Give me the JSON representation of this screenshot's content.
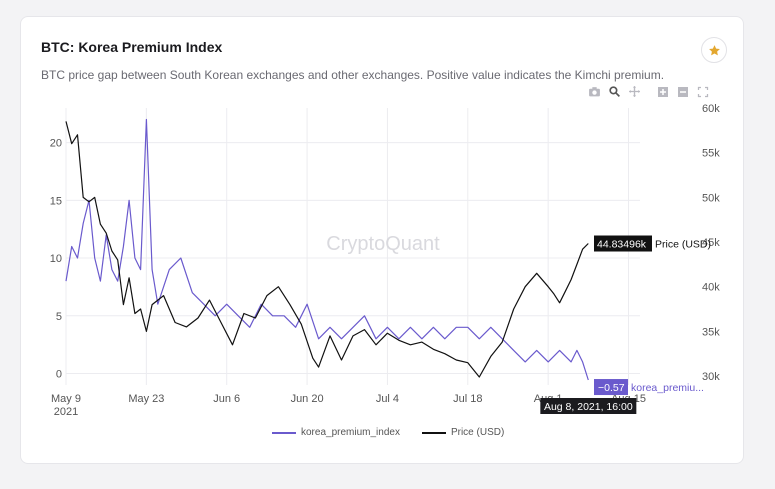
{
  "card": {
    "title": "BTC: Korea Premium Index",
    "subtitle": "BTC price gap between South Korean exchanges and other exchanges. Positive value indicates the Kimchi premium."
  },
  "toolbar": {
    "icons": [
      "camera-icon",
      "zoom-icon",
      "pan-icon",
      "zoom-in-icon",
      "zoom-out-icon",
      "autoscale-icon"
    ]
  },
  "colors": {
    "premium": "#6a5acd",
    "price": "#111111",
    "grid": "#ececf0",
    "star": "#e3a72f"
  },
  "chart_data": {
    "type": "line",
    "watermark": "CryptoQuant",
    "x_ticks": [
      "May 9",
      "May 23",
      "Jun 6",
      "Jun 20",
      "Jul 4",
      "Jul 18",
      "Aug 1",
      "Aug 15"
    ],
    "x_year_label": "2021",
    "x_range": [
      "2021-05-09",
      "2021-08-17"
    ],
    "y_left": {
      "ticks": [
        "0",
        "5",
        "10",
        "15",
        "20"
      ],
      "range": [
        -1,
        23
      ]
    },
    "y_right": {
      "ticks": [
        "30k",
        "35k",
        "40k",
        "45k",
        "50k",
        "55k",
        "60k"
      ],
      "range": [
        29000,
        60000
      ]
    },
    "series": [
      {
        "name": "korea_premium_index",
        "axis": "left",
        "x": [
          "2021-05-09",
          "2021-05-10",
          "2021-05-11",
          "2021-05-12",
          "2021-05-13",
          "2021-05-14",
          "2021-05-15",
          "2021-05-16",
          "2021-05-17",
          "2021-05-18",
          "2021-05-19",
          "2021-05-20",
          "2021-05-21",
          "2021-05-22",
          "2021-05-23",
          "2021-05-24",
          "2021-05-25",
          "2021-05-27",
          "2021-05-29",
          "2021-05-31",
          "2021-06-02",
          "2021-06-04",
          "2021-06-06",
          "2021-06-08",
          "2021-06-10",
          "2021-06-12",
          "2021-06-14",
          "2021-06-16",
          "2021-06-18",
          "2021-06-20",
          "2021-06-22",
          "2021-06-24",
          "2021-06-26",
          "2021-06-28",
          "2021-06-30",
          "2021-07-02",
          "2021-07-04",
          "2021-07-06",
          "2021-07-08",
          "2021-07-10",
          "2021-07-12",
          "2021-07-14",
          "2021-07-16",
          "2021-07-18",
          "2021-07-20",
          "2021-07-22",
          "2021-07-24",
          "2021-07-26",
          "2021-07-28",
          "2021-07-30",
          "2021-08-01",
          "2021-08-03",
          "2021-08-05",
          "2021-08-06",
          "2021-08-07",
          "2021-08-08"
        ],
        "values": [
          8,
          11,
          10,
          13,
          15,
          10,
          8,
          12,
          9,
          8,
          11,
          15,
          10,
          9,
          22,
          9,
          6,
          9,
          10,
          7,
          6,
          5,
          6,
          5,
          4,
          6,
          5,
          5,
          4,
          6,
          3,
          4,
          3,
          4,
          5,
          3,
          4,
          3,
          4,
          3,
          4,
          3,
          4,
          4,
          3,
          4,
          3,
          2,
          1,
          2,
          1,
          2,
          1,
          2,
          1,
          -0.57
        ]
      },
      {
        "name": "Price (USD)",
        "axis": "right",
        "x": [
          "2021-05-09",
          "2021-05-10",
          "2021-05-11",
          "2021-05-12",
          "2021-05-13",
          "2021-05-14",
          "2021-05-15",
          "2021-05-16",
          "2021-05-17",
          "2021-05-18",
          "2021-05-19",
          "2021-05-20",
          "2021-05-21",
          "2021-05-22",
          "2021-05-23",
          "2021-05-24",
          "2021-05-26",
          "2021-05-28",
          "2021-05-30",
          "2021-06-01",
          "2021-06-03",
          "2021-06-05",
          "2021-06-07",
          "2021-06-09",
          "2021-06-11",
          "2021-06-13",
          "2021-06-15",
          "2021-06-17",
          "2021-06-19",
          "2021-06-21",
          "2021-06-22",
          "2021-06-24",
          "2021-06-26",
          "2021-06-28",
          "2021-06-30",
          "2021-07-02",
          "2021-07-04",
          "2021-07-06",
          "2021-07-08",
          "2021-07-10",
          "2021-07-12",
          "2021-07-14",
          "2021-07-16",
          "2021-07-18",
          "2021-07-20",
          "2021-07-22",
          "2021-07-24",
          "2021-07-26",
          "2021-07-28",
          "2021-07-30",
          "2021-08-01",
          "2021-08-02",
          "2021-08-03",
          "2021-08-04",
          "2021-08-05",
          "2021-08-06",
          "2021-08-07",
          "2021-08-08"
        ],
        "values": [
          58500,
          56000,
          57000,
          50000,
          49500,
          50000,
          47000,
          46000,
          44000,
          43000,
          38000,
          41000,
          37000,
          37500,
          35000,
          38000,
          39000,
          36000,
          35500,
          36500,
          38500,
          36000,
          33500,
          37000,
          36500,
          39000,
          40000,
          38000,
          35800,
          32000,
          31000,
          34500,
          31800,
          34500,
          35200,
          33500,
          34800,
          34000,
          33500,
          33800,
          33000,
          32500,
          31800,
          31500,
          29900,
          32200,
          33800,
          37500,
          40000,
          41500,
          40000,
          39200,
          38200,
          39500,
          40800,
          42500,
          44200,
          44834.96
        ]
      }
    ],
    "hover": {
      "date_label": "Aug 8, 2021, 16:00",
      "premium_value": "−0.57",
      "premium_series_label": "korea_premiu...",
      "price_value": "44.83496k",
      "price_series_label": "Price (USD)"
    },
    "legend": [
      "korea_premium_index",
      "Price (USD)"
    ],
    "grid": true,
    "legend_position": "bottom-center"
  }
}
